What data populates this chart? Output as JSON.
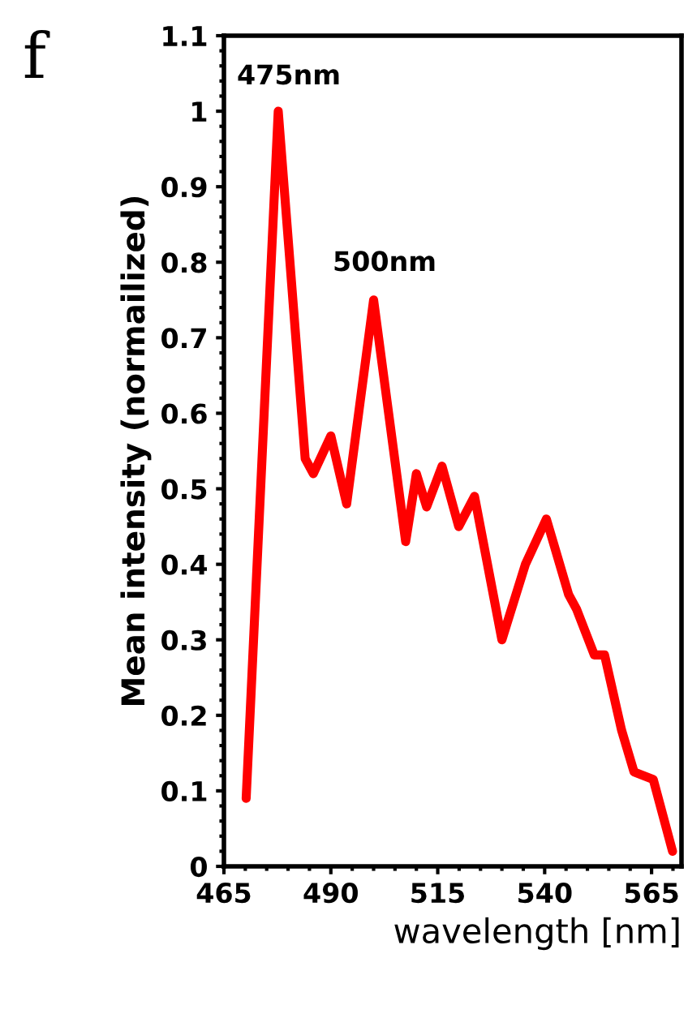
{
  "chart_data": {
    "type": "line",
    "xlabel": "wavelength [nm]",
    "ylabel": "Mean intensity (normailized)",
    "annotations": [
      "f",
      "475nm",
      "500nm"
    ],
    "x": [
      470.2,
      477.7,
      484,
      485.9,
      490,
      493.7,
      500,
      507.5,
      510,
      512.4,
      516,
      519.9,
      523.6,
      530,
      535.5,
      540.4,
      545.6,
      547.5,
      551.6,
      554,
      558,
      560.9,
      565.4,
      569.9
    ],
    "series": [
      {
        "color": "#ff0000",
        "values": [
          0.09,
          1.0,
          0.54,
          0.52,
          0.57,
          0.48,
          0.75,
          0.43,
          0.52,
          0.476,
          0.53,
          0.45,
          0.49,
          0.3,
          0.4,
          0.46,
          0.36,
          0.34,
          0.28,
          0.28,
          0.18,
          0.125,
          0.115,
          0.02
        ]
      }
    ],
    "xlim": [
      465,
      572
    ],
    "xticks": [
      465,
      490,
      515,
      540,
      565
    ],
    "ylim": [
      0,
      1.1
    ],
    "yticks": [
      0,
      0.1,
      0.2,
      0.3,
      0.4,
      0.5,
      0.6,
      0.7,
      0.8,
      0.9,
      1,
      1.1
    ],
    "grid": false,
    "legend": false,
    "marker": "none",
    "line_style": "solid"
  }
}
